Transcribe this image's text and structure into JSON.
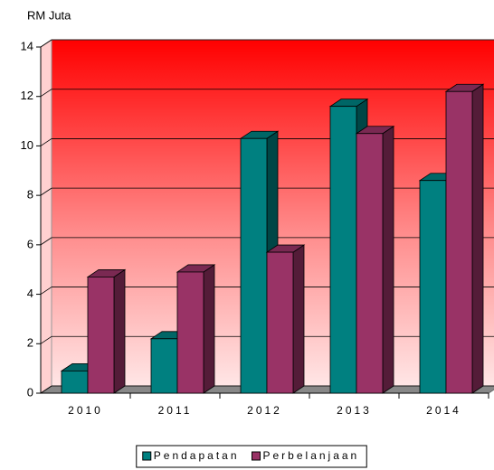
{
  "chart_data": {
    "type": "bar3d",
    "ylabel": "RM Juta",
    "categories": [
      "2010",
      "2011",
      "2012",
      "2013",
      "2014"
    ],
    "series": [
      {
        "name": "Pendapatan",
        "color": "#008080",
        "values": [
          0.9,
          2.2,
          10.3,
          11.6,
          8.6
        ]
      },
      {
        "name": "Perbelanjaan",
        "color": "#993366",
        "values": [
          4.7,
          4.9,
          5.7,
          10.5,
          12.2
        ]
      }
    ],
    "ylim": [
      0,
      14
    ],
    "yticks": [
      0,
      2,
      4,
      6,
      8,
      10,
      12,
      14
    ],
    "grid": true,
    "legend": "bottom"
  }
}
